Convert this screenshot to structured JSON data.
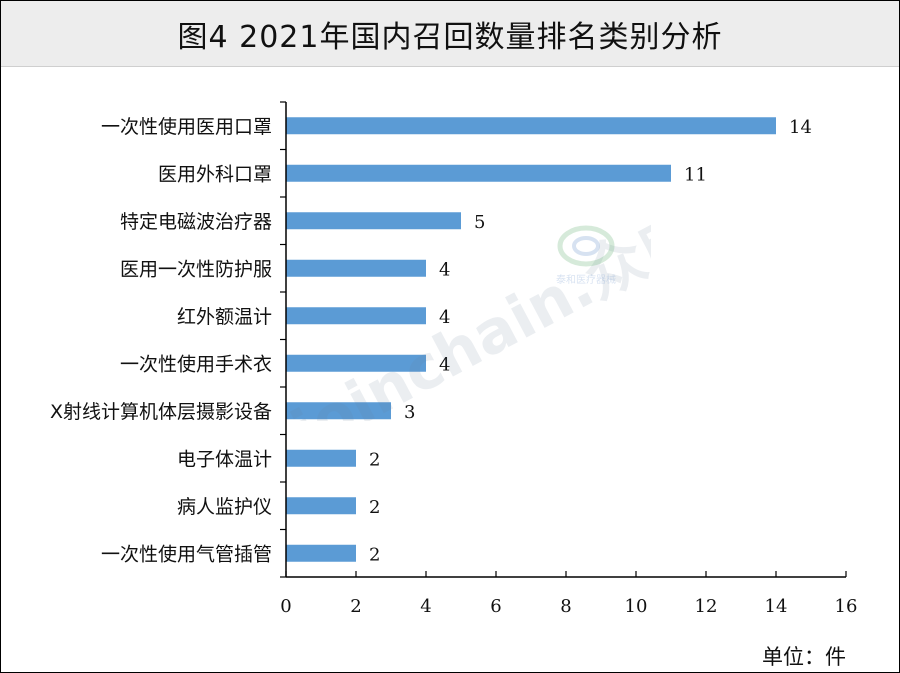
{
  "chart_data": {
    "type": "bar",
    "orientation": "horizontal",
    "title": "图4 2021年国内召回数量排名类别分析",
    "categories": [
      "一次性使用医用口罩",
      "医用外科口罩",
      "特定电磁波治疗器",
      "医用一次性防护服",
      "红外额温计",
      "一次性使用手术衣",
      "X射线计算机体层摄影设备",
      "电子体温计",
      "病人监护仪",
      "一次性使用气管插管"
    ],
    "values": [
      14,
      11,
      5,
      4,
      4,
      4,
      3,
      2,
      2,
      2
    ],
    "xlim": [
      0,
      16
    ],
    "xticks": [
      0,
      2,
      4,
      6,
      8,
      10,
      12,
      14,
      16
    ],
    "unit_label": "单位：件",
    "grid": false,
    "bar_color": "#5b9bd5"
  },
  "watermark": {
    "text": "joinchain.众成",
    "seal_text": "泰和医疗器械"
  }
}
